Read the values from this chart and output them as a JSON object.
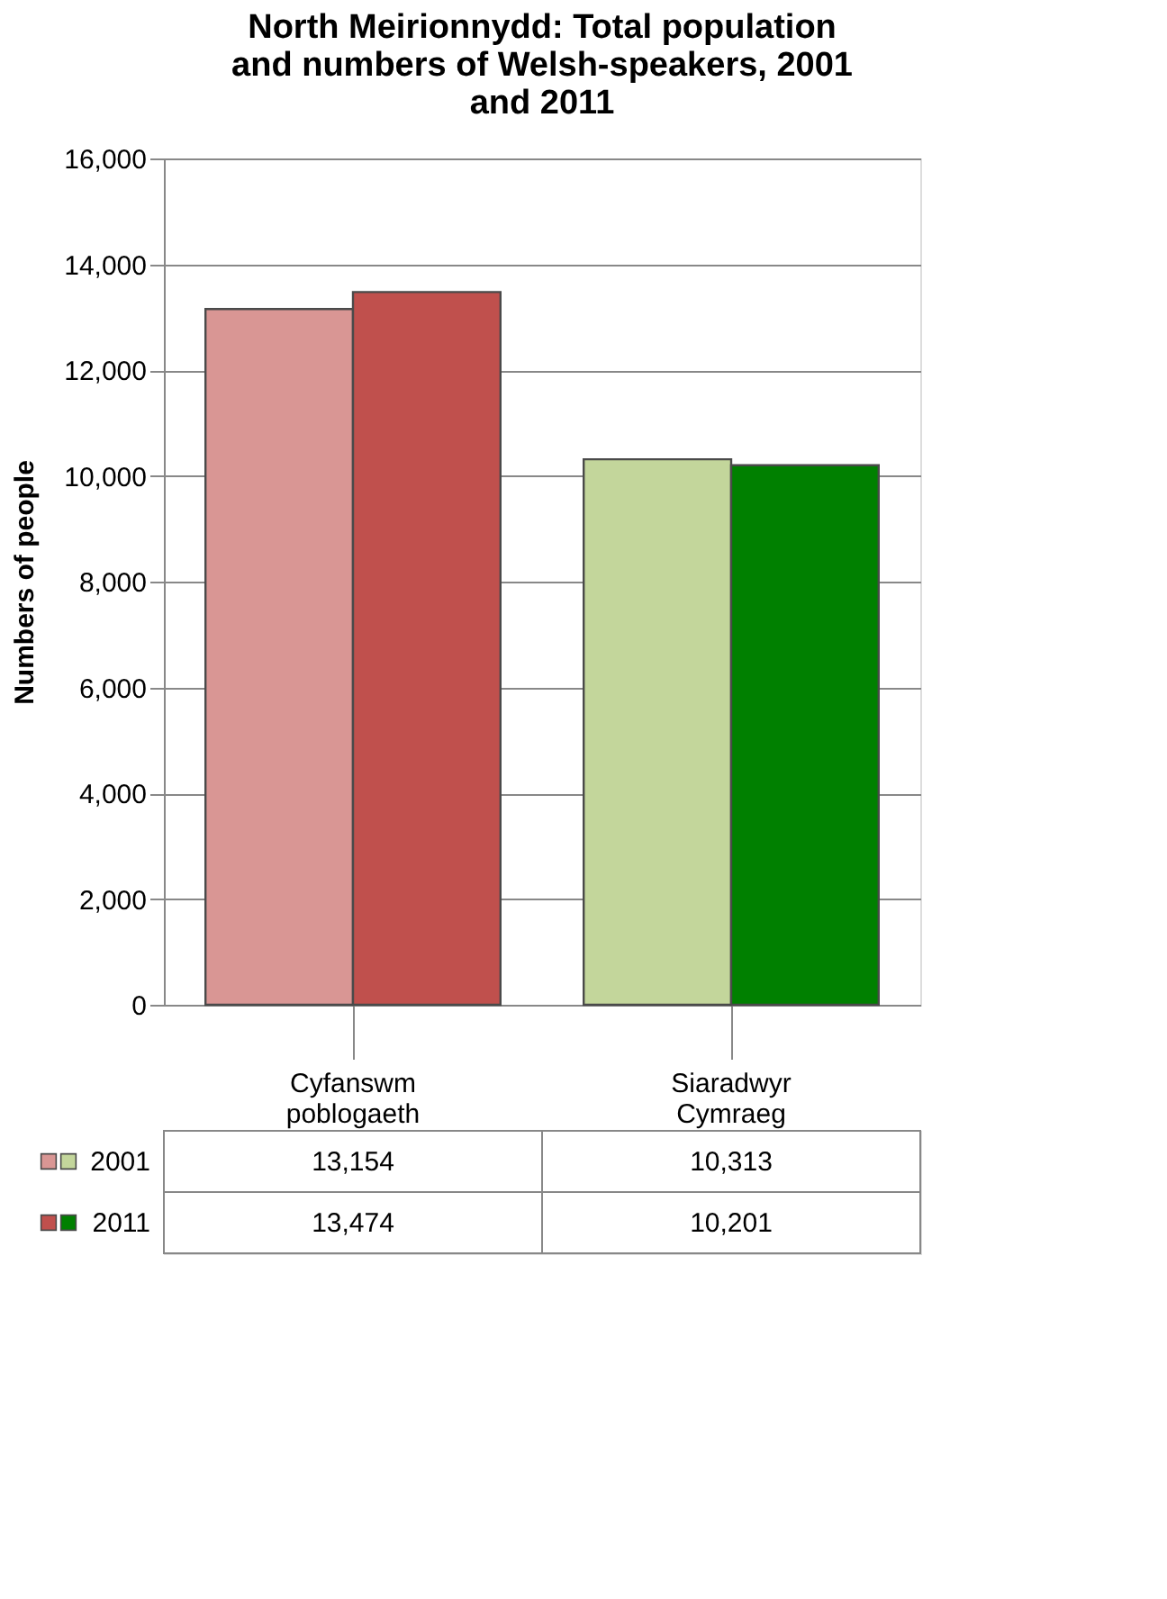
{
  "chart_data": {
    "type": "bar",
    "title": "North Meirionnydd: Total population and numbers of Welsh-speakers, 2001 and 2011",
    "ylabel": "Numbers of people",
    "categories": [
      "Cyfanswm poblogaeth",
      "Siaradwyr Cymraeg"
    ],
    "series": [
      {
        "name": "2001",
        "colors": [
          "#d99694",
          "#c3d69b"
        ],
        "values": [
          13154,
          10313
        ],
        "value_labels": [
          "13,154",
          "10,313"
        ]
      },
      {
        "name": "2011",
        "colors": [
          "#c0504d",
          "#008000"
        ],
        "values": [
          13474,
          10201
        ],
        "value_labels": [
          "13,474",
          "10,201"
        ]
      }
    ],
    "ylim": [
      0,
      16000
    ],
    "yticks": [
      0,
      {
        "value": 2000,
        "label": "2,000"
      },
      {
        "value": 4000,
        "label": "4,000"
      },
      {
        "value": 6000,
        "label": "6,000"
      },
      {
        "value": 8000,
        "label": "8,000"
      },
      {
        "value": 10000,
        "label": "10,000"
      },
      {
        "value": 12000,
        "label": "12,000"
      },
      {
        "value": 14000,
        "label": "14,000"
      },
      {
        "value": 16000,
        "label": "16,000"
      }
    ],
    "grid": "y",
    "legend": "bottom left"
  }
}
